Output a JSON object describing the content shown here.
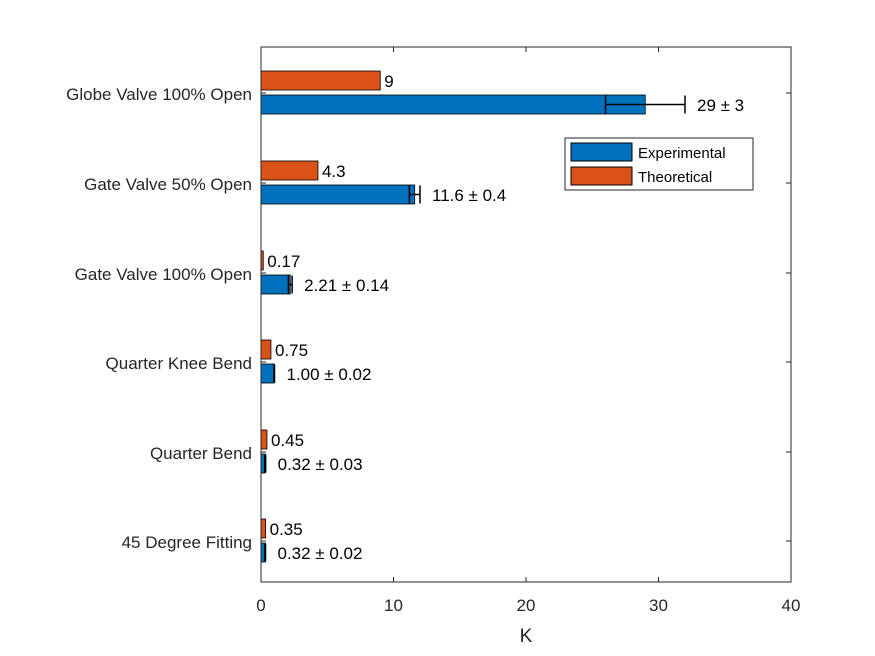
{
  "chart_data": {
    "type": "bar",
    "orientation": "horizontal",
    "categories": [
      "Globe Valve 100% Open",
      "Gate Valve 50% Open",
      "Gate Valve 100% Open",
      "Quarter Knee Bend",
      "Quarter Bend",
      "45 Degree Fitting"
    ],
    "series": [
      {
        "name": "Experimental",
        "color": "#0072BD",
        "values": [
          29,
          11.6,
          2.21,
          1.0,
          0.32,
          0.32
        ],
        "errors": [
          3,
          0.4,
          0.14,
          0.02,
          0.03,
          0.02
        ],
        "labels": [
          "29 ± 3",
          "11.6 ± 0.4",
          "2.21 ± 0.14",
          "1.00 ± 0.02",
          "0.32 ± 0.03",
          "0.32 ± 0.02"
        ]
      },
      {
        "name": "Theoretical",
        "color": "#D95319",
        "values": [
          9,
          4.3,
          0.17,
          0.75,
          0.45,
          0.35
        ],
        "labels": [
          "9",
          "4.3",
          "0.17",
          "0.75",
          "0.45",
          "0.35"
        ]
      }
    ],
    "xlabel": "K",
    "xlim": [
      0,
      40
    ],
    "xticks": [
      "0",
      "10",
      "20",
      "30",
      "40"
    ],
    "grid": false,
    "legend_position": "top-right"
  }
}
